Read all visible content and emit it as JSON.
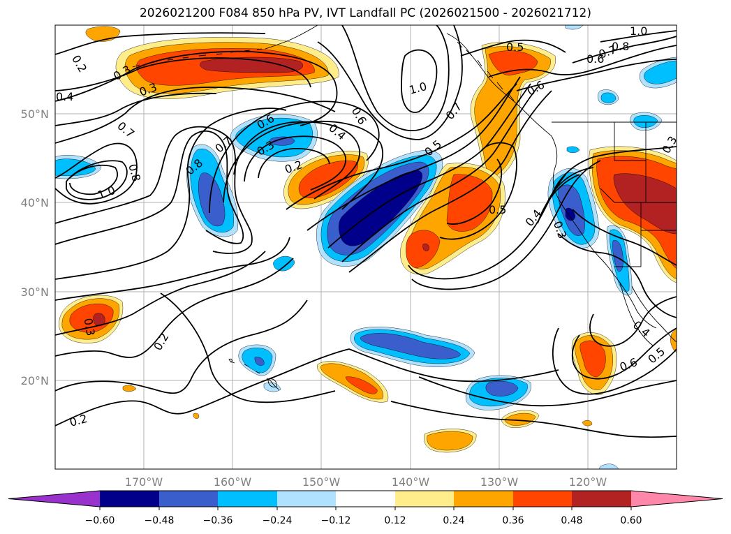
{
  "title": "2026021200 F084 850 hPa PV, IVT Landfall PC (2026021500 - 2026021712)",
  "map": {
    "lat_labels": [
      "50°N",
      "40°N",
      "30°N",
      "20°N"
    ],
    "lon_labels": [
      "170°W",
      "160°W",
      "150°W",
      "140°W",
      "130°W",
      "120°W"
    ],
    "contour_labels": [
      "0.2",
      "0.3",
      "0.3",
      "0.4",
      "0.7",
      "0.8",
      "1.0",
      "0.8",
      "0.7",
      "0.6",
      "0.3",
      "0.2",
      "0.6",
      "0.4",
      "0.5",
      "0.7",
      "1.0",
      "0.5",
      "0.6",
      "0.5",
      "0.4",
      "0.3",
      "1.0",
      "0.8",
      "0.7",
      "0.6",
      "0.3",
      "0.3",
      "0.2",
      "0.4",
      "0.6",
      "0.5",
      "0.2"
    ]
  },
  "colorbar": {
    "tick_labels": [
      "−0.60",
      "−0.48",
      "−0.36",
      "−0.24",
      "−0.12",
      "0.12",
      "0.24",
      "0.36",
      "0.48",
      "0.60"
    ],
    "colors": [
      "#9932cc",
      "#00008b",
      "#3a5fcd",
      "#00bfff",
      "#b0e2ff",
      "#ffffff",
      "#ffec8b",
      "#ffa500",
      "#ff4500",
      "#b22222",
      "#ff88aa"
    ]
  },
  "fill_colors": {
    "neg1": "#b0e2ff",
    "neg2": "#00bfff",
    "neg3": "#3a5fcd",
    "neg4": "#00008b",
    "pos1": "#ffec8b",
    "pos2": "#ffa500",
    "pos3": "#ff4500",
    "pos4": "#b22222"
  }
}
